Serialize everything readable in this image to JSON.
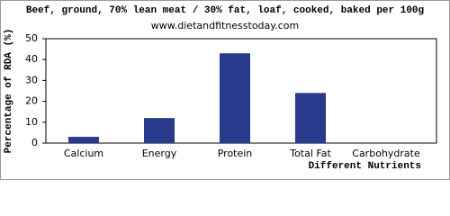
{
  "chart_data": {
    "type": "bar",
    "title": "Beef, ground, 70% lean meat / 30% fat, loaf, cooked, baked per 100g",
    "subtitle": "www.dietandfitnesstoday.com",
    "y_label": "Percentage of RDA (%)",
    "x_label": "Different Nutrients",
    "categories": [
      "Calcium",
      "Energy",
      "Protein",
      "Total Fat",
      "Carbohydrate"
    ],
    "values": [
      3,
      12,
      43,
      24,
      0
    ],
    "color": "#283a8c",
    "ylim": [
      0,
      50
    ],
    "yticks": [
      0,
      10,
      20,
      30,
      40,
      50
    ],
    "grid": false
  }
}
